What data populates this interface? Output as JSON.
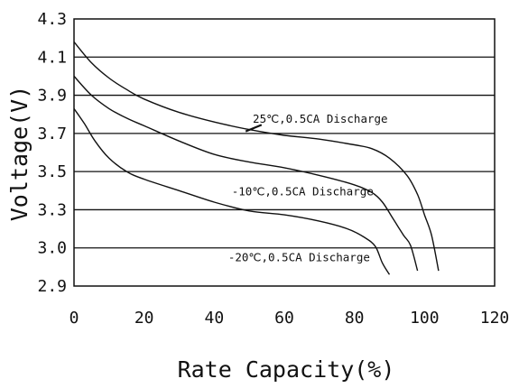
{
  "chart_data": {
    "type": "line",
    "title": "",
    "xlabel": "Rate Capacity(%)",
    "ylabel": "Voltage(V)",
    "xlim": [
      0,
      120
    ],
    "ylim": [
      2.9,
      4.3
    ],
    "x_ticks": [
      "0",
      "20",
      "40",
      "60",
      "80",
      "100",
      "120"
    ],
    "y_ticks": [
      "2.9",
      "3.0",
      "3.3",
      "3.5",
      "3.7",
      "3.9",
      "4.1",
      "4.3"
    ],
    "y_tick_values": [
      2.9,
      3.0,
      3.3,
      3.5,
      3.7,
      3.9,
      4.1,
      4.3
    ],
    "grid": "horizontal",
    "legend": "none",
    "series": [
      {
        "name": "25℃,0.5CA Discharge",
        "x": [
          0,
          5,
          10,
          15,
          20,
          30,
          40,
          50,
          60,
          70,
          80,
          85,
          90,
          95,
          98,
          100,
          102,
          104
        ],
        "y": [
          4.18,
          4.07,
          3.99,
          3.93,
          3.88,
          3.81,
          3.76,
          3.72,
          3.69,
          3.67,
          3.64,
          3.62,
          3.57,
          3.48,
          3.38,
          3.26,
          3.1,
          2.94
        ]
      },
      {
        "name": "-10℃,0.5CA Discharge",
        "x": [
          0,
          5,
          10,
          15,
          20,
          30,
          40,
          50,
          60,
          70,
          80,
          85,
          88,
          91,
          94,
          96,
          98
        ],
        "y": [
          4.0,
          3.9,
          3.83,
          3.78,
          3.74,
          3.66,
          3.59,
          3.55,
          3.52,
          3.48,
          3.43,
          3.39,
          3.34,
          3.23,
          3.1,
          3.02,
          2.94
        ]
      },
      {
        "name": "-20℃,0.5CA Discharge",
        "x": [
          0,
          3,
          6,
          10,
          15,
          20,
          30,
          40,
          50,
          60,
          70,
          78,
          83,
          86,
          88,
          90
        ],
        "y": [
          3.83,
          3.75,
          3.66,
          3.57,
          3.5,
          3.46,
          3.4,
          3.34,
          3.29,
          3.26,
          3.21,
          3.15,
          3.08,
          3.01,
          2.96,
          2.93
        ]
      }
    ]
  }
}
